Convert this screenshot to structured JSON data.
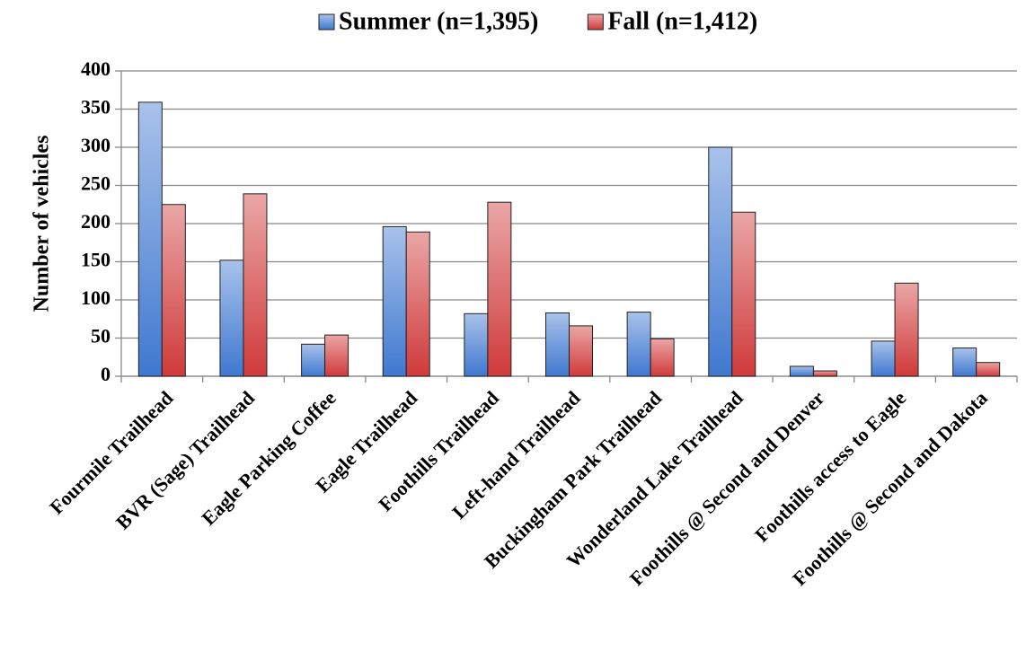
{
  "chart_data": {
    "type": "bar",
    "y_label": "Number of vehicles",
    "categories": [
      "Fourmile Trailhead",
      "BVR (Sage) Trailhead",
      "Eagle Parking Coffee",
      "Eagle Trailhead",
      "Foothills Trailhead",
      "Left-hand Trailhead",
      "Buckingham Park Trailhead",
      "Wonderland Lake Trailhead",
      "Foothills @ Second and Denver",
      "Foothills access to Eagle",
      "Foothills @ Second and Dakota"
    ],
    "series": [
      {
        "name": "Summer (n=1,395)",
        "color": "#3f78d0",
        "values": [
          359,
          152,
          42,
          196,
          82,
          83,
          84,
          300,
          13,
          46,
          37
        ]
      },
      {
        "name": "Fall (n=1,412)",
        "color": "#d03a3a",
        "values": [
          225,
          239,
          54,
          189,
          228,
          66,
          49,
          215,
          7,
          122,
          18
        ]
      }
    ],
    "ylim": [
      0,
      400
    ],
    "yticks": [
      0,
      50,
      100,
      150,
      200,
      250,
      300,
      350,
      400
    ],
    "grid": true,
    "legend": "top"
  }
}
